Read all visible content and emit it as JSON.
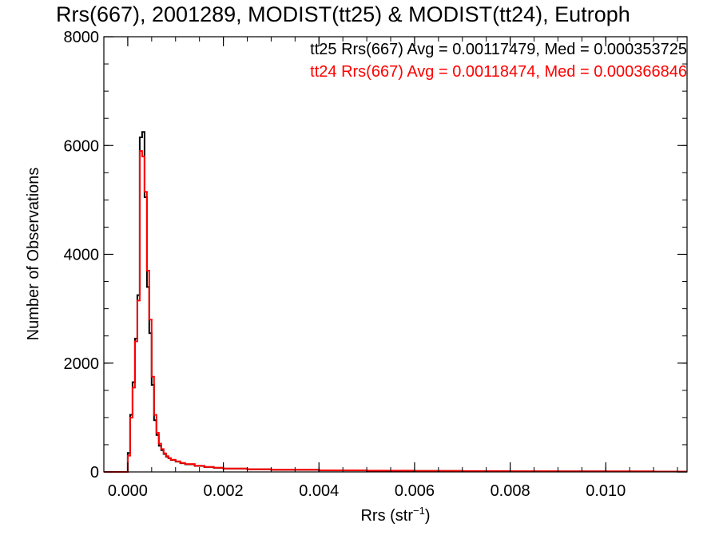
{
  "chart_data": {
    "type": "histogram",
    "title": "Rrs(667), 2001289, MODIST(tt25) & MODIST(tt24), Eutroph",
    "xlabel_main": "Rrs (str",
    "xlabel_sup": "−1",
    "xlabel_close": ")",
    "ylabel": "Number of Observations",
    "xlim": [
      -0.0005,
      0.0117
    ],
    "ylim": [
      0,
      8000
    ],
    "x_ticks": [
      0.0,
      0.002,
      0.004,
      0.006,
      0.008,
      0.01
    ],
    "x_tick_labels": [
      "0.000",
      "0.002",
      "0.004",
      "0.006",
      "0.008",
      "0.010"
    ],
    "y_ticks": [
      0,
      2000,
      4000,
      6000,
      8000
    ],
    "y_tick_labels": [
      "0",
      "2000",
      "4000",
      "6000",
      "8000"
    ],
    "grid": false,
    "legend": {
      "placement": "top-right",
      "entries": [
        {
          "text": "tt25 Rrs(667) Avg = 0.00117479, Med = 0.000353725",
          "color": "#000000"
        },
        {
          "text": "tt24 Rrs(667) Avg = 0.00118474, Med = 0.000366846",
          "color": "#ff0000"
        }
      ]
    },
    "bin_width": 5e-05,
    "series": [
      {
        "name": "tt25",
        "color": "#000000",
        "x": [
          0.0,
          5e-05,
          0.0001,
          0.00015,
          0.0002,
          0.00025,
          0.0003,
          0.00035,
          0.0004,
          0.00045,
          0.0005,
          0.00055,
          0.0006,
          0.00065,
          0.0007,
          0.00075,
          0.0008,
          0.00085,
          0.0009,
          0.001,
          0.0011,
          0.0012,
          0.0014,
          0.0016,
          0.0018,
          0.002,
          0.0025,
          0.003,
          0.004,
          0.005,
          0.006,
          0.007,
          0.008,
          0.009,
          0.01,
          0.011,
          0.0115
        ],
        "values": [
          350,
          1050,
          1650,
          2450,
          3250,
          6150,
          6250,
          5050,
          3400,
          2550,
          1600,
          950,
          680,
          480,
          400,
          330,
          280,
          250,
          220,
          190,
          160,
          140,
          110,
          90,
          75,
          60,
          48,
          38,
          28,
          22,
          18,
          15,
          12,
          10,
          9,
          8,
          6
        ]
      },
      {
        "name": "tt24",
        "color": "#ff0000",
        "x": [
          0.0,
          5e-05,
          0.0001,
          0.00015,
          0.0002,
          0.00025,
          0.0003,
          0.00035,
          0.0004,
          0.00045,
          0.0005,
          0.00055,
          0.0006,
          0.00065,
          0.0007,
          0.00075,
          0.0008,
          0.00085,
          0.0009,
          0.001,
          0.0011,
          0.0012,
          0.0014,
          0.0016,
          0.0018,
          0.002,
          0.0025,
          0.003,
          0.004,
          0.005,
          0.006,
          0.007,
          0.008,
          0.009,
          0.01,
          0.011,
          0.0115
        ],
        "values": [
          300,
          1000,
          1550,
          2400,
          3150,
          5900,
          5800,
          5150,
          3700,
          2800,
          1750,
          1050,
          720,
          520,
          420,
          340,
          290,
          255,
          225,
          195,
          165,
          145,
          115,
          92,
          78,
          62,
          50,
          40,
          30,
          24,
          19,
          16,
          13,
          11,
          10,
          8,
          7
        ]
      }
    ]
  }
}
